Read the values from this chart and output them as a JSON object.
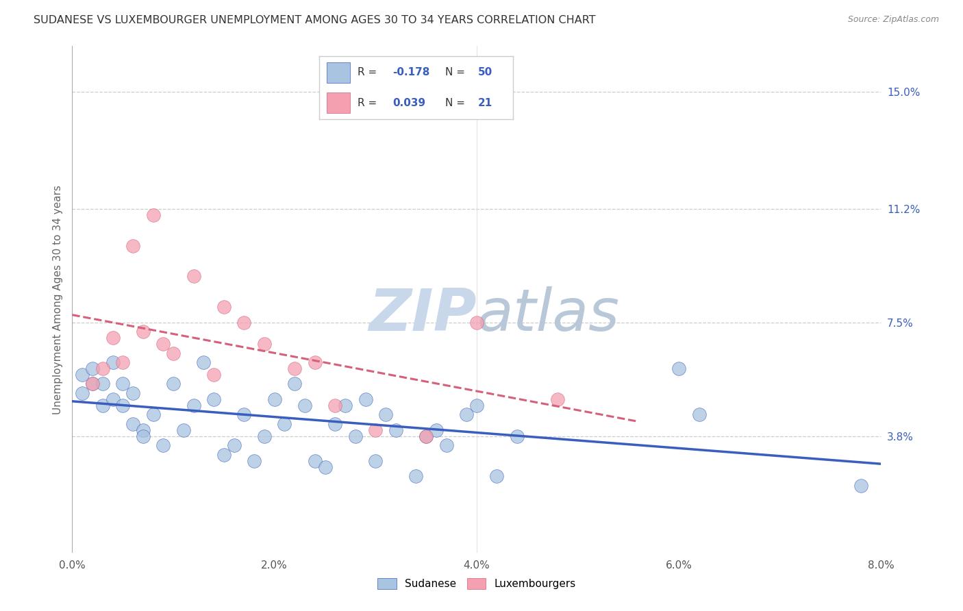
{
  "title": "SUDANESE VS LUXEMBOURGER UNEMPLOYMENT AMONG AGES 30 TO 34 YEARS CORRELATION CHART",
  "source": "Source: ZipAtlas.com",
  "ylabel": "Unemployment Among Ages 30 to 34 years",
  "xlabel_ticks": [
    "0.0%",
    "2.0%",
    "4.0%",
    "6.0%",
    "8.0%"
  ],
  "xlabel_vals": [
    0.0,
    0.02,
    0.04,
    0.06,
    0.08
  ],
  "ylabel_ticks_right": [
    "15.0%",
    "11.2%",
    "7.5%",
    "3.8%"
  ],
  "ylabel_vals_right": [
    0.15,
    0.112,
    0.075,
    0.038
  ],
  "xlim": [
    0.0,
    0.08
  ],
  "ylim": [
    0.0,
    0.165
  ],
  "sudanese_R": -0.178,
  "sudanese_N": 50,
  "luxembourger_R": 0.039,
  "luxembourger_N": 21,
  "sudanese_color": "#a8c4e0",
  "luxembourger_color": "#f4a0b0",
  "sudanese_line_color": "#3A5EBF",
  "luxembourger_line_color": "#D4607A",
  "watermark_color": "#c8d8ea",
  "sud_x": [
    0.001,
    0.001,
    0.002,
    0.002,
    0.003,
    0.003,
    0.004,
    0.004,
    0.005,
    0.005,
    0.006,
    0.006,
    0.007,
    0.007,
    0.008,
    0.009,
    0.01,
    0.011,
    0.012,
    0.013,
    0.014,
    0.015,
    0.016,
    0.017,
    0.018,
    0.019,
    0.02,
    0.021,
    0.022,
    0.023,
    0.024,
    0.025,
    0.026,
    0.027,
    0.028,
    0.029,
    0.03,
    0.031,
    0.032,
    0.034,
    0.035,
    0.036,
    0.037,
    0.039,
    0.04,
    0.042,
    0.044,
    0.06,
    0.062,
    0.078
  ],
  "sud_y": [
    0.058,
    0.052,
    0.06,
    0.055,
    0.048,
    0.055,
    0.05,
    0.062,
    0.055,
    0.048,
    0.052,
    0.042,
    0.04,
    0.038,
    0.045,
    0.035,
    0.055,
    0.04,
    0.048,
    0.062,
    0.05,
    0.032,
    0.035,
    0.045,
    0.03,
    0.038,
    0.05,
    0.042,
    0.055,
    0.048,
    0.03,
    0.028,
    0.042,
    0.048,
    0.038,
    0.05,
    0.03,
    0.045,
    0.04,
    0.025,
    0.038,
    0.04,
    0.035,
    0.045,
    0.048,
    0.025,
    0.038,
    0.06,
    0.045,
    0.022
  ],
  "lux_x": [
    0.002,
    0.003,
    0.004,
    0.005,
    0.006,
    0.007,
    0.008,
    0.009,
    0.01,
    0.012,
    0.014,
    0.015,
    0.017,
    0.019,
    0.022,
    0.024,
    0.026,
    0.03,
    0.035,
    0.04,
    0.048
  ],
  "lux_y": [
    0.055,
    0.06,
    0.07,
    0.062,
    0.1,
    0.072,
    0.11,
    0.068,
    0.065,
    0.09,
    0.058,
    0.08,
    0.075,
    0.068,
    0.06,
    0.062,
    0.048,
    0.04,
    0.038,
    0.075,
    0.05
  ]
}
